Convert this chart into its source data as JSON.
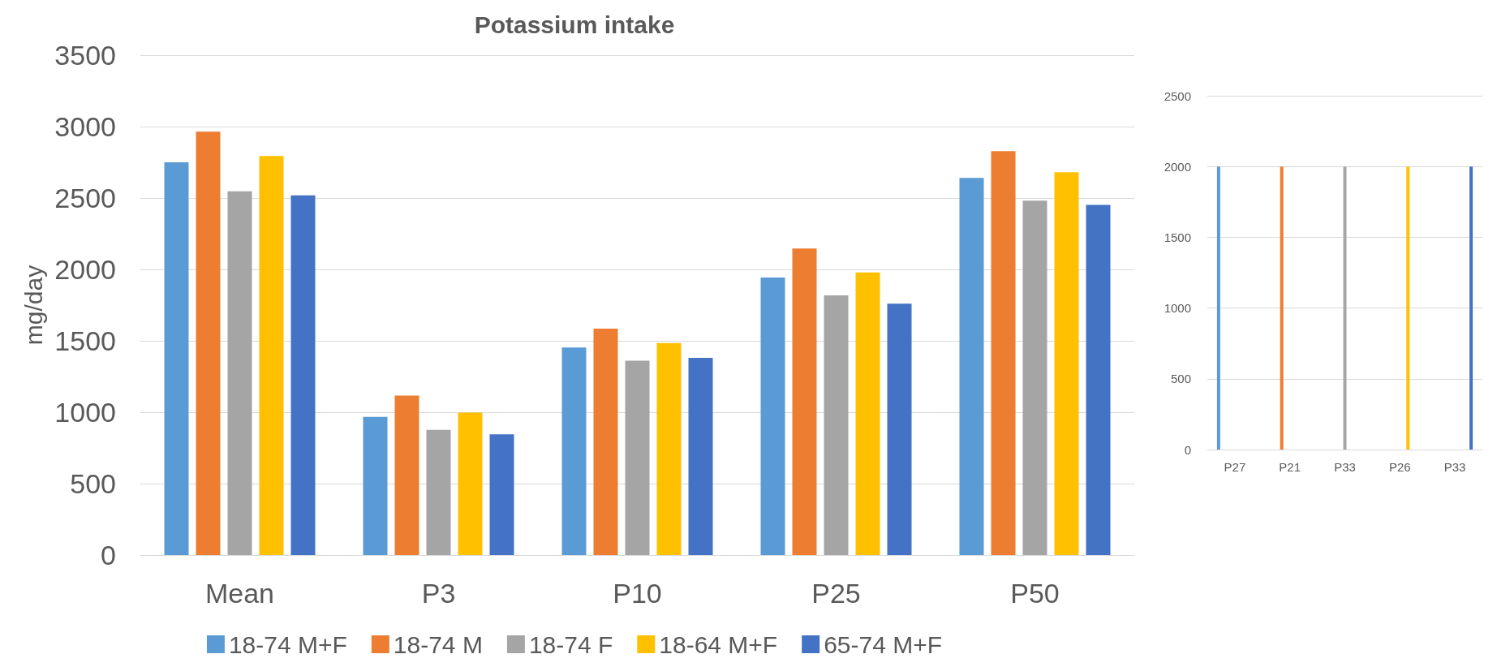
{
  "chart_data": [
    {
      "type": "bar",
      "title": "Potassium intake",
      "ylabel": "mg/day",
      "categories": [
        "Mean",
        "P3",
        "P10",
        "P25",
        "P50"
      ],
      "series": [
        {
          "name": "18-74 M+F",
          "color": "#5b9bd5",
          "values": [
            2750,
            968,
            1453,
            1943,
            2641
          ]
        },
        {
          "name": "18-74 M",
          "color": "#ed7d31",
          "values": [
            2965,
            1117,
            1585,
            2146,
            2828
          ]
        },
        {
          "name": "18-74 F",
          "color": "#a5a5a5",
          "values": [
            2547,
            877,
            1361,
            1818,
            2481
          ]
        },
        {
          "name": "18-64 M+F",
          "color": "#ffc000",
          "values": [
            2794,
            997,
            1484,
            1979,
            2680
          ]
        },
        {
          "name": "65-74 M+F",
          "color": "#4472c4",
          "values": [
            2519,
            845,
            1380,
            1760,
            2452
          ]
        }
      ],
      "ylim": [
        0,
        3500
      ],
      "yticks": [
        0,
        500,
        1000,
        1500,
        2000,
        2500,
        3000,
        3500
      ],
      "grid": "y",
      "legend": "bottom"
    },
    {
      "type": "bar",
      "categories": [
        "P27",
        "P21",
        "P33",
        "P26",
        "P33"
      ],
      "series": [
        {
          "color": "#5b9bd5",
          "values": [
            2000,
            null,
            null,
            null,
            null
          ]
        },
        {
          "color": "#ed7d31",
          "values": [
            null,
            2000,
            null,
            null,
            null
          ]
        },
        {
          "color": "#a5a5a5",
          "values": [
            null,
            null,
            2000,
            null,
            null
          ]
        },
        {
          "color": "#ffc000",
          "values": [
            null,
            null,
            null,
            2000,
            null
          ]
        },
        {
          "color": "#4472c4",
          "values": [
            null,
            null,
            null,
            null,
            2000
          ]
        }
      ],
      "ylim": [
        0,
        2500
      ],
      "yticks": [
        0,
        500,
        1000,
        1500,
        2000,
        2500
      ],
      "grid": "y"
    }
  ]
}
